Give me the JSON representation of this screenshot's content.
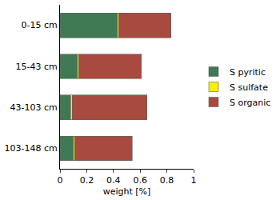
{
  "chart_data": {
    "type": "bar",
    "orientation": "horizontal",
    "stacked": true,
    "categories": [
      "0-15 cm",
      "15-43 cm",
      "43-103 cm",
      "103-148 cm"
    ],
    "series": [
      {
        "name": "S pyritic",
        "color": "#3f7a55",
        "values": [
          0.43,
          0.13,
          0.08,
          0.1
        ]
      },
      {
        "name": "S sulfate",
        "color": "#f5f000",
        "values": [
          0.01,
          0.01,
          0.01,
          0.01
        ]
      },
      {
        "name": "S organic",
        "color": "#a84a40",
        "values": [
          0.39,
          0.47,
          0.56,
          0.43
        ]
      }
    ],
    "xlabel": "weight [%]",
    "xlim": [
      0,
      1
    ],
    "xticks": [
      0,
      0.2,
      0.4,
      0.6,
      0.8,
      1
    ],
    "grid": false,
    "legend": "right"
  }
}
